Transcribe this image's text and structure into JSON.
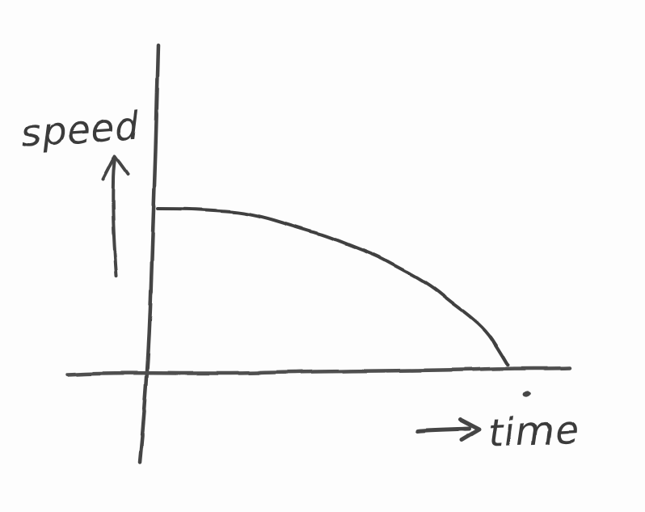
{
  "page": {
    "kind": "hand-drawn sketch of a graph",
    "colors": {
      "background": "#fdfdfd",
      "ink": "#454545"
    }
  },
  "chart_data": {
    "type": "line",
    "title": "",
    "xlabel": "time",
    "ylabel": "speed",
    "xlim": [
      0,
      1
    ],
    "ylim": [
      0,
      1
    ],
    "grid": false,
    "legend": "none",
    "tick_labels": "none (unlabeled sketch axes)",
    "style": "hand-drawn pen sketch; speed is constant at maximum, then decreases with increasing steepness to zero",
    "x": [
      0.0,
      0.08,
      0.16,
      0.23,
      0.3,
      0.36,
      0.42,
      0.48,
      0.55,
      0.63,
      0.68,
      0.74,
      0.79,
      0.84,
      0.89,
      0.94,
      0.97,
      1.0
    ],
    "values": [
      1.0,
      1.0,
      0.99,
      0.98,
      0.95,
      0.91,
      0.87,
      0.83,
      0.77,
      0.7,
      0.64,
      0.57,
      0.5,
      0.41,
      0.33,
      0.23,
      0.13,
      0.02
    ],
    "series": [
      {
        "name": "speed",
        "values_key": "values"
      }
    ],
    "annotations": {
      "y_axis_arrow": "up-arrow below the word speed, pointing up",
      "x_axis_arrow": "right-arrow to the left of the word time, pointing right",
      "stray_mark": "small pen dot below the x-axis near its right end"
    }
  }
}
